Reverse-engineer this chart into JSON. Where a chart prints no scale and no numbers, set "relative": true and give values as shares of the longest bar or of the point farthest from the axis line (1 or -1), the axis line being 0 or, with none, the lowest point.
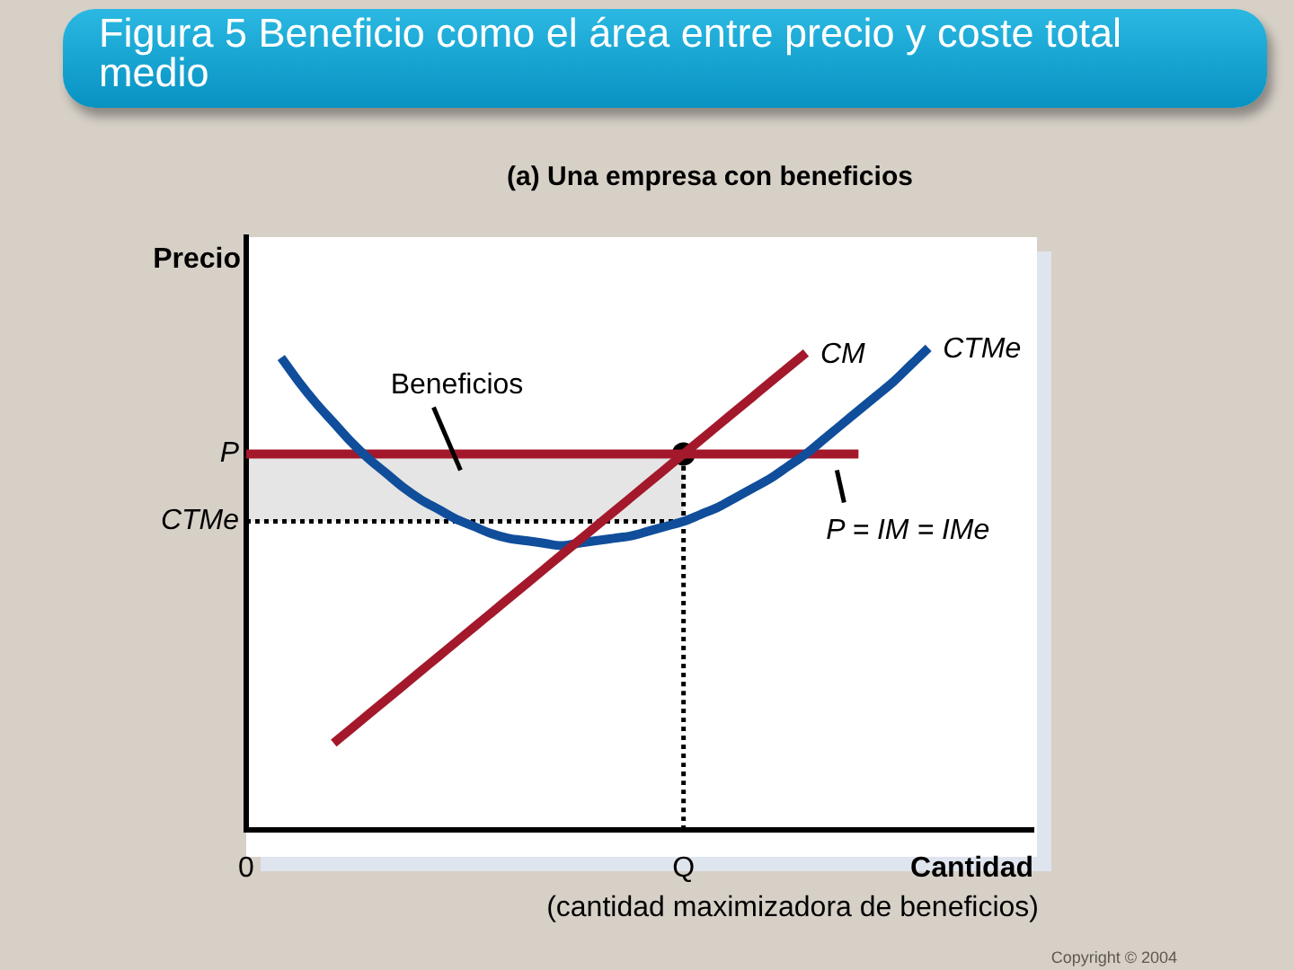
{
  "chart_data": {
    "type": "line",
    "title": "Figura 5 Beneficio como el área entre precio y coste total medio",
    "subtitle": "(a) Una empresa con beneficios",
    "xlabel": "Cantidad",
    "ylabel": "Precio",
    "relative": true,
    "legend": false,
    "marker": "none",
    "categories": [
      "0",
      null,
      null,
      null,
      null,
      null,
      null,
      null,
      null,
      null,
      null,
      null,
      null,
      null,
      null,
      null,
      null,
      null,
      null,
      null,
      null,
      null,
      null,
      null,
      null,
      "Q",
      null,
      null,
      null,
      null,
      null,
      null,
      null,
      null,
      null,
      null,
      null,
      null,
      null,
      null,
      null,
      null,
      null,
      null,
      null,
      null
    ],
    "series": [
      {
        "type": "line",
        "color": "#000000",
        "line_style": "dotted",
        "values": [
          0.64,
          0.64,
          0.64,
          0.64,
          0.64,
          0.64,
          0.64,
          0.64,
          0.64,
          0.64,
          0.64,
          0.64,
          0.64,
          0.64,
          0.64,
          0.64,
          0.64,
          0.64,
          0.64,
          0.64,
          0.64,
          0.64,
          0.64,
          0.64,
          0.64,
          0.64,
          null,
          null,
          null,
          null,
          null,
          null,
          null,
          null,
          null,
          null,
          null,
          null,
          null,
          null,
          null,
          null,
          null,
          null,
          null,
          null
        ],
        "lower": [
          0.64,
          0.64,
          0.64,
          0.64,
          0.64,
          0.64,
          0.64,
          0.64,
          0.64,
          0.64,
          0.64,
          0.64,
          0.64,
          0.64,
          0.64,
          0.64,
          0.64,
          0.64,
          0.64,
          0.64,
          0.64,
          0.64,
          0.64,
          0.64,
          0.64,
          0.64,
          null,
          null,
          null,
          null,
          null,
          null,
          null,
          null,
          null,
          null,
          null,
          null,
          null,
          null,
          null,
          null,
          null,
          null,
          null,
          null
        ],
        "upper": [
          0.78,
          0.78,
          0.78,
          0.78,
          0.78,
          0.78,
          0.78,
          0.78,
          0.78,
          0.78,
          0.78,
          0.78,
          0.78,
          0.78,
          0.78,
          0.78,
          0.78,
          0.78,
          0.78,
          0.78,
          0.78,
          0.78,
          0.78,
          0.78,
          0.78,
          0.78,
          null,
          null,
          null,
          null,
          null,
          null,
          null,
          null,
          null,
          null,
          null,
          null,
          null,
          null,
          null,
          null,
          null,
          null,
          null,
          null
        ]
      },
      {
        "type": "scatter",
        "marker": "circle",
        "color": "#000000",
        "x": [
          "Q"
        ],
        "values": [
          0.78
        ]
      },
      {
        "type": "line",
        "color": "#000000",
        "line_style": "dotted",
        "x": [
          "Q",
          "Q"
        ],
        "values": [
          0,
          0.78
        ]
      },
      {
        "type": "line",
        "name": "P = IM = IMe",
        "color": "#a3192b",
        "values": [
          0.78,
          0.78,
          0.78,
          0.78,
          0.78,
          0.78,
          0.78,
          0.78,
          0.78,
          0.78,
          0.78,
          0.78,
          0.78,
          0.78,
          0.78,
          0.78,
          0.78,
          0.78,
          0.78,
          0.78,
          0.78,
          0.78,
          0.78,
          0.78,
          0.78,
          0.78,
          0.78,
          0.78,
          0.78,
          0.78,
          0.78,
          0.78,
          0.78,
          0.78,
          0.78,
          0.78,
          null,
          null,
          null,
          null,
          null,
          null,
          null,
          null,
          null,
          null
        ]
      },
      {
        "type": "line",
        "name": "CTMe",
        "color": "#104e9b",
        "values": [
          null,
          null,
          0.98,
          0.93,
          0.885,
          0.845,
          0.805,
          0.77,
          0.74,
          0.71,
          0.685,
          0.665,
          0.645,
          0.63,
          0.615,
          0.605,
          0.6,
          0.595,
          0.59,
          0.595,
          0.6,
          0.605,
          0.61,
          0.62,
          0.63,
          0.64,
          0.655,
          0.67,
          0.69,
          0.71,
          0.73,
          0.755,
          0.78,
          0.81,
          0.84,
          0.87,
          0.9,
          0.93,
          0.965,
          1.0,
          null,
          null,
          null,
          null,
          null,
          null
        ]
      },
      {
        "type": "line",
        "name": "CM",
        "color": "#a3192b",
        "values": [
          null,
          null,
          null,
          null,
          null,
          0.18,
          0.21,
          0.24,
          0.27,
          0.3,
          0.33,
          0.36,
          0.39,
          0.42,
          0.45,
          0.48,
          0.51,
          0.54,
          0.57,
          0.6,
          0.63,
          0.66,
          0.69,
          0.72,
          0.75,
          0.78,
          0.81,
          0.84,
          0.87,
          0.9,
          0.93,
          0.96,
          0.99,
          null,
          null,
          null,
          null,
          null,
          null,
          null,
          null,
          null,
          null,
          null,
          null,
          null
        ]
      }
    ],
    "annotations": [
      {
        "text": "P",
        "x": "0",
        "y": 0.78
      },
      {
        "text": "CTMe",
        "x": "0",
        "y": 0.64
      },
      "Beneficios",
      "(cantidad maximizadora de beneficios)",
      "Copyright © 2004"
    ]
  }
}
